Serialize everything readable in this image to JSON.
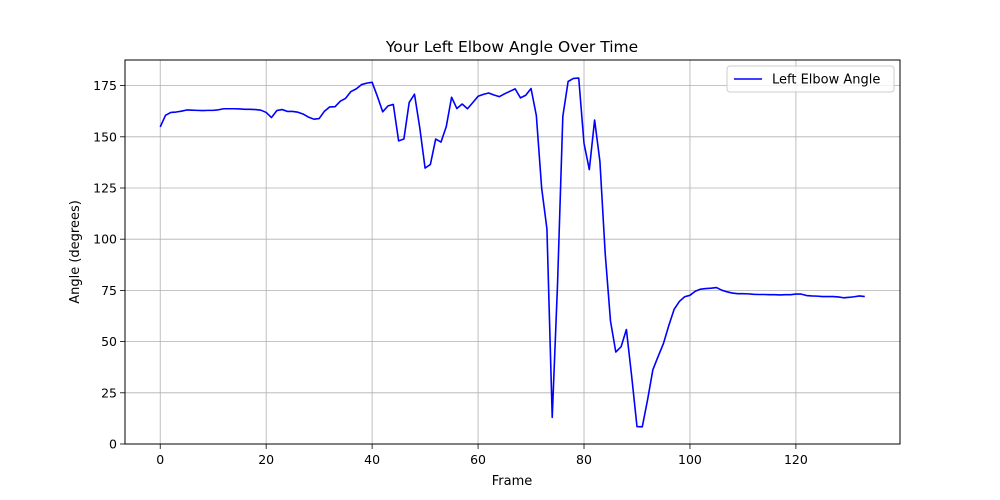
{
  "chart_data": {
    "type": "line",
    "title": "Your Left Elbow Angle Over Time",
    "xlabel": "Frame",
    "ylabel": "Angle (degrees)",
    "xlim": [
      -6.65,
      139.65
    ],
    "ylim": [
      0,
      187.5
    ],
    "xticks": [
      0,
      20,
      40,
      60,
      80,
      100,
      120
    ],
    "yticks": [
      0,
      25,
      50,
      75,
      100,
      125,
      150,
      175
    ],
    "grid": true,
    "legend_position": "top-right",
    "series": [
      {
        "name": "Left Elbow Angle",
        "color": "#0000ff",
        "x": [
          0,
          1,
          2,
          3,
          4,
          5,
          6,
          7,
          8,
          9,
          10,
          11,
          12,
          13,
          14,
          15,
          16,
          17,
          18,
          19,
          20,
          21,
          22,
          23,
          24,
          25,
          26,
          27,
          28,
          29,
          30,
          31,
          32,
          33,
          34,
          35,
          36,
          37,
          38,
          39,
          40,
          41,
          42,
          43,
          44,
          45,
          46,
          47,
          48,
          49,
          50,
          51,
          52,
          53,
          54,
          55,
          56,
          57,
          58,
          59,
          60,
          61,
          62,
          63,
          64,
          65,
          66,
          67,
          68,
          69,
          70,
          71,
          72,
          73,
          74,
          75,
          76,
          77,
          78,
          79,
          80,
          81,
          82,
          83,
          84,
          85,
          86,
          87,
          88,
          89,
          90,
          91,
          92,
          93,
          94,
          95,
          96,
          97,
          98,
          99,
          100,
          101,
          102,
          103,
          104,
          105,
          106,
          107,
          108,
          109,
          110,
          111,
          112,
          113,
          114,
          115,
          116,
          117,
          118,
          119,
          120,
          121,
          122,
          123,
          124,
          125,
          126,
          127,
          128,
          129,
          130,
          131,
          132,
          133
        ],
        "y": [
          154.8,
          160.5,
          161.9,
          162.1,
          162.5,
          163.1,
          163.0,
          162.9,
          162.8,
          162.9,
          162.9,
          163.2,
          163.7,
          163.7,
          163.7,
          163.6,
          163.4,
          163.4,
          163.3,
          163.0,
          161.9,
          159.4,
          162.8,
          163.3,
          162.4,
          162.4,
          162.0,
          161.1,
          159.6,
          158.6,
          158.9,
          162.5,
          164.6,
          164.7,
          167.4,
          168.8,
          172.1,
          173.4,
          175.5,
          176.2,
          176.6,
          169.7,
          162.2,
          165.1,
          165.8,
          148.0,
          148.9,
          166.8,
          170.8,
          154.3,
          134.7,
          136.5,
          148.9,
          147.4,
          155.0,
          169.3,
          163.8,
          166.0,
          163.7,
          166.7,
          169.8,
          170.7,
          171.4,
          170.4,
          169.6,
          171.0,
          172.2,
          173.4,
          169.0,
          170.3,
          173.6,
          160.4,
          125.0,
          105.0,
          13.0,
          78.0,
          160.0,
          177.0,
          178.5,
          178.7,
          146.8,
          134.0,
          158.2,
          138.0,
          93.0,
          60.0,
          44.9,
          47.5,
          55.9,
          33.0,
          8.5,
          8.4,
          21.6,
          36.3,
          42.8,
          49.1,
          57.8,
          65.7,
          69.6,
          71.9,
          72.6,
          74.6,
          75.6,
          75.9,
          76.1,
          76.4,
          75.1,
          74.3,
          73.7,
          73.4,
          73.4,
          73.3,
          73.1,
          73.0,
          73.0,
          72.9,
          72.9,
          72.8,
          72.9,
          72.9,
          73.2,
          73.2,
          72.5,
          72.3,
          72.2,
          72.0,
          72.0,
          72.0,
          71.8,
          71.4,
          71.6,
          71.9,
          72.3,
          72.0
        ]
      }
    ]
  }
}
